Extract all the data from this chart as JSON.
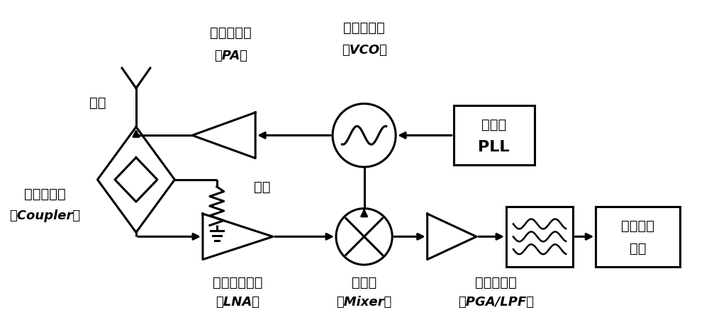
{
  "bg_color": "#ffffff",
  "line_color": "#000000",
  "text_color": "#000000",
  "lw": 2.2,
  "fig_width": 10.0,
  "fig_height": 4.56,
  "labels": {
    "PA_cn": "功率放大器",
    "PA_en": "（PA）",
    "VCO_cn": "压控振荡器",
    "VCO_en": "（VCO）",
    "PLL_cn": "锁相环",
    "PLL_en": "PLL",
    "LNA_cn": "低噪声放大器",
    "LNA_en": "（LNA）",
    "Mixer_cn": "混频器",
    "Mixer_en": "（Mixer）",
    "PGA_cn": "中频放大器",
    "PGA_en": "（PGA/LPF）",
    "Digital_cn": "数字处理",
    "Digital_cn2": "模块",
    "Antenna_cn": "天线",
    "Coupler_cn": "定向耦合器",
    "Coupler_en": "（Coupler）",
    "Resistor_cn": "电阻"
  }
}
